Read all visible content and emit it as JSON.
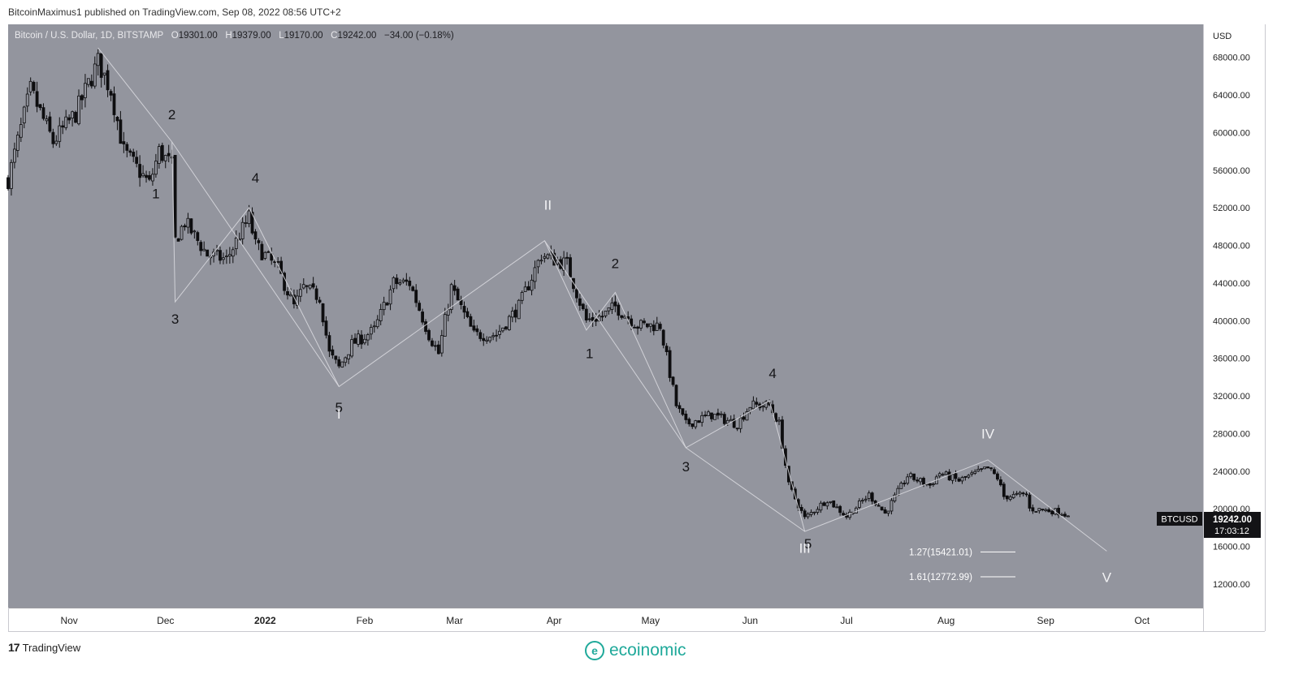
{
  "header": {
    "published_line": "BitcoinMaximus1 published on TradingView.com, Sep 08, 2022 08:56 UTC+2"
  },
  "legend": {
    "symbol": "Bitcoin / U.S. Dollar, 1D, BITSTAMP",
    "o_label": "O",
    "o_value": "19301.00",
    "h_label": "H",
    "h_value": "19379.00",
    "l_label": "L",
    "l_value": "19170.00",
    "c_label": "C",
    "c_value": "19242.00",
    "change": "−34.00 (−0.18%)"
  },
  "price_tag": {
    "symbol": "BTCUSD",
    "price": "19242.00",
    "countdown": "17:03:12"
  },
  "fib_levels": [
    {
      "label": "1.27(15421.01)",
      "value": 15421.01
    },
    {
      "label": "1.61(12772.99)",
      "value": 12772.99
    }
  ],
  "branding": {
    "tradingview": "TradingView",
    "tv_mark": "17",
    "ecoinomic": "ecoinomic",
    "eco_mark": "e"
  },
  "colors": {
    "chart_bg": "#93959e",
    "candle": "#0e0e10",
    "wave_line": "#d8d8de",
    "fib_line": "#ffffff",
    "axis_bg": "#ffffff",
    "accent_brand": "#1fa99a"
  },
  "chart_data": {
    "type": "candlestick",
    "title": "Bitcoin / U.S. Dollar, 1D, BITSTAMP",
    "xlabel": "",
    "ylabel": "USD",
    "x_range": [
      "2021-10-13",
      "2022-10-20"
    ],
    "ylim": [
      9500,
      71500
    ],
    "y_ticks": [
      12000,
      16000,
      20000,
      24000,
      28000,
      32000,
      36000,
      40000,
      44000,
      48000,
      52000,
      56000,
      60000,
      64000,
      68000
    ],
    "y_tick_labels": [
      "12000.00",
      "16000.00",
      "20000.00",
      "24000.00",
      "28000.00",
      "32000.00",
      "36000.00",
      "40000.00",
      "44000.00",
      "48000.00",
      "52000.00",
      "56000.00",
      "60000.00",
      "64000.00",
      "68000.00"
    ],
    "x_ticks": [
      {
        "label": "Nov",
        "date": "2021-11-01"
      },
      {
        "label": "Dec",
        "date": "2021-12-01"
      },
      {
        "label": "2022",
        "date": "2022-01-01",
        "bold": true
      },
      {
        "label": "Feb",
        "date": "2022-02-01"
      },
      {
        "label": "Mar",
        "date": "2022-03-01"
      },
      {
        "label": "Apr",
        "date": "2022-04-01"
      },
      {
        "label": "May",
        "date": "2022-05-01"
      },
      {
        "label": "Jun",
        "date": "2022-06-01"
      },
      {
        "label": "Jul",
        "date": "2022-07-01"
      },
      {
        "label": "Aug",
        "date": "2022-08-01"
      },
      {
        "label": "Sep",
        "date": "2022-09-01"
      },
      {
        "label": "Oct",
        "date": "2022-10-01"
      }
    ],
    "grid": false,
    "last_price": 19242.0,
    "price_anchors": [
      [
        "2021-10-13",
        55000
      ],
      [
        "2021-10-20",
        64500
      ],
      [
        "2021-10-27",
        59000
      ],
      [
        "2021-11-03",
        62000
      ],
      [
        "2021-11-10",
        67500
      ],
      [
        "2021-11-14",
        64500
      ],
      [
        "2021-11-18",
        58000
      ],
      [
        "2021-11-26",
        54500
      ],
      [
        "2021-11-29",
        58000
      ],
      [
        "2021-12-03",
        56500
      ],
      [
        "2021-12-04",
        48500
      ],
      [
        "2021-12-07",
        50500
      ],
      [
        "2021-12-14",
        47000
      ],
      [
        "2021-12-20",
        46500
      ],
      [
        "2021-12-27",
        51000
      ],
      [
        "2021-12-29",
        48000
      ],
      [
        "2022-01-05",
        45500
      ],
      [
        "2022-01-10",
        41500
      ],
      [
        "2022-01-13",
        43500
      ],
      [
        "2022-01-18",
        42500
      ],
      [
        "2022-01-21",
        36500
      ],
      [
        "2022-01-24",
        35000
      ],
      [
        "2022-01-28",
        37500
      ],
      [
        "2022-02-04",
        39000
      ],
      [
        "2022-02-10",
        44000
      ],
      [
        "2022-02-15",
        44000
      ],
      [
        "2022-02-21",
        38500
      ],
      [
        "2022-02-24",
        36500
      ],
      [
        "2022-02-28",
        43500
      ],
      [
        "2022-03-07",
        38500
      ],
      [
        "2022-03-14",
        38500
      ],
      [
        "2022-03-21",
        41500
      ],
      [
        "2022-03-28",
        47000
      ],
      [
        "2022-04-05",
        46000
      ],
      [
        "2022-04-11",
        40000
      ],
      [
        "2022-04-16",
        40500
      ],
      [
        "2022-04-20",
        41500
      ],
      [
        "2022-04-27",
        39500
      ],
      [
        "2022-05-04",
        39500
      ],
      [
        "2022-05-09",
        31000
      ],
      [
        "2022-05-12",
        29000
      ],
      [
        "2022-05-20",
        30000
      ],
      [
        "2022-05-28",
        29000
      ],
      [
        "2022-06-01",
        31000
      ],
      [
        "2022-06-07",
        31000
      ],
      [
        "2022-06-10",
        29000
      ],
      [
        "2022-06-13",
        22500
      ],
      [
        "2022-06-18",
        19000
      ],
      [
        "2022-06-25",
        21000
      ],
      [
        "2022-07-01",
        19200
      ],
      [
        "2022-07-08",
        21500
      ],
      [
        "2022-07-13",
        19500
      ],
      [
        "2022-07-20",
        23500
      ],
      [
        "2022-07-27",
        22500
      ],
      [
        "2022-07-30",
        23800
      ],
      [
        "2022-08-05",
        23000
      ],
      [
        "2022-08-14",
        24300
      ],
      [
        "2022-08-17",
        23300
      ],
      [
        "2022-08-19",
        21300
      ],
      [
        "2022-08-26",
        21500
      ],
      [
        "2022-08-27",
        20000
      ],
      [
        "2022-09-03",
        19800
      ],
      [
        "2022-09-06",
        19600
      ],
      [
        "2022-09-08",
        19242
      ]
    ],
    "wave_lines": [
      [
        [
          "2021-11-10",
          69000
        ],
        [
          "2021-12-03",
          59000
        ],
        [
          "2022-01-24",
          33000
        ],
        [
          "2022-03-29",
          48500
        ],
        [
          "2022-05-12",
          26500
        ],
        [
          "2022-06-18",
          17600
        ],
        [
          "2022-08-14",
          25200
        ],
        [
          "2022-09-20",
          15500
        ]
      ],
      [
        [
          "2021-12-03",
          59000
        ],
        [
          "2021-12-04",
          42000
        ],
        [
          "2021-12-27",
          52000
        ],
        [
          "2022-01-24",
          33000
        ]
      ],
      [
        [
          "2022-03-29",
          48500
        ],
        [
          "2022-04-11",
          39000
        ],
        [
          "2022-04-20",
          43000
        ],
        [
          "2022-05-12",
          26500
        ],
        [
          "2022-06-07",
          31500
        ],
        [
          "2022-06-18",
          17600
        ]
      ]
    ],
    "annotations": [
      {
        "text": "2",
        "date": "2021-12-03",
        "price": 61400,
        "color": "dark"
      },
      {
        "text": "1",
        "date": "2021-11-28",
        "price": 53000,
        "color": "dark"
      },
      {
        "text": "3",
        "date": "2021-12-04",
        "price": 39700,
        "color": "dark"
      },
      {
        "text": "4",
        "date": "2021-12-29",
        "price": 54700,
        "color": "dark"
      },
      {
        "text": "5",
        "date": "2022-01-24",
        "price": 30300,
        "color": "dark"
      },
      {
        "text": "I",
        "date": "2022-01-24",
        "price": 29600,
        "color": "light"
      },
      {
        "text": "II",
        "date": "2022-03-30",
        "price": 51800,
        "color": "light"
      },
      {
        "text": "2",
        "date": "2022-04-20",
        "price": 45600,
        "color": "dark"
      },
      {
        "text": "1",
        "date": "2022-04-12",
        "price": 36000,
        "color": "dark"
      },
      {
        "text": "3",
        "date": "2022-05-12",
        "price": 24000,
        "color": "dark"
      },
      {
        "text": "4",
        "date": "2022-06-08",
        "price": 33900,
        "color": "dark"
      },
      {
        "text": "5",
        "date": "2022-06-19",
        "price": 15800,
        "color": "dark"
      },
      {
        "text": "III",
        "date": "2022-06-18",
        "price": 15300,
        "color": "light"
      },
      {
        "text": "IV",
        "date": "2022-08-14",
        "price": 27500,
        "color": "light"
      },
      {
        "text": "V",
        "date": "2022-09-20",
        "price": 12200,
        "color": "light"
      }
    ]
  }
}
